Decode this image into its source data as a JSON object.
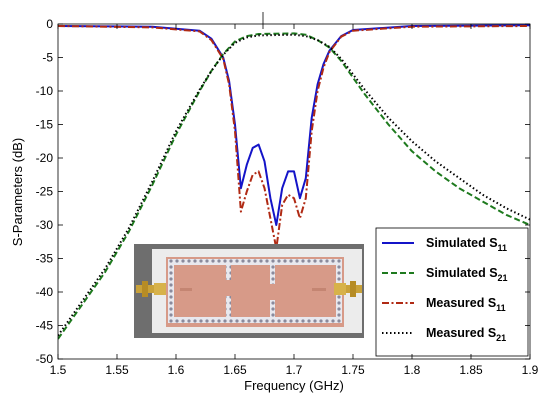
{
  "chart_data": {
    "type": "line",
    "title": "",
    "xlabel": "Frequency (GHz)",
    "ylabel": "S-Parameters (dB)",
    "xlim": [
      1.5,
      1.9
    ],
    "ylim": [
      -50,
      0
    ],
    "xticks": [
      "1.5",
      "1.55",
      "1.6",
      "1.65",
      "1.7",
      "1.75",
      "1.8",
      "1.85",
      "1.9"
    ],
    "yticks": [
      "0",
      "-5",
      "-10",
      "-15",
      "-20",
      "-25",
      "-30",
      "-35",
      "-40",
      "-45",
      "-50"
    ],
    "grid": false,
    "legend_position": "bottom-right",
    "inset_image": "photo of fabricated microstrip filter board with SMA connectors",
    "series": [
      {
        "name": "Simulated S11",
        "label_main": "Simulated S",
        "label_sub": "11",
        "color": "#1414c8",
        "style": "solid",
        "points": [
          [
            1.5,
            -0.3
          ],
          [
            1.58,
            -0.4
          ],
          [
            1.62,
            -1.0
          ],
          [
            1.63,
            -2.2
          ],
          [
            1.64,
            -5.0
          ],
          [
            1.645,
            -8.5
          ],
          [
            1.65,
            -15.0
          ],
          [
            1.655,
            -24.5
          ],
          [
            1.66,
            -21.0
          ],
          [
            1.665,
            -18.5
          ],
          [
            1.67,
            -18.0
          ],
          [
            1.675,
            -20.5
          ],
          [
            1.68,
            -26.0
          ],
          [
            1.685,
            -30.0
          ],
          [
            1.69,
            -24.5
          ],
          [
            1.695,
            -22.0
          ],
          [
            1.7,
            -22.0
          ],
          [
            1.705,
            -26.0
          ],
          [
            1.71,
            -23.0
          ],
          [
            1.715,
            -14.0
          ],
          [
            1.72,
            -9.0
          ],
          [
            1.725,
            -6.0
          ],
          [
            1.73,
            -4.0
          ],
          [
            1.74,
            -1.8
          ],
          [
            1.75,
            -0.9
          ],
          [
            1.8,
            -0.3
          ],
          [
            1.9,
            -0.2
          ]
        ]
      },
      {
        "name": "Simulated S21",
        "label_main": "Simulated S",
        "label_sub": "21",
        "color": "#1e7a1e",
        "style": "dashed",
        "points": [
          [
            1.5,
            -47.0
          ],
          [
            1.52,
            -42.0
          ],
          [
            1.54,
            -37.0
          ],
          [
            1.56,
            -31.0
          ],
          [
            1.58,
            -24.0
          ],
          [
            1.6,
            -16.5
          ],
          [
            1.62,
            -10.0
          ],
          [
            1.63,
            -7.0
          ],
          [
            1.64,
            -4.5
          ],
          [
            1.65,
            -2.6
          ],
          [
            1.66,
            -1.8
          ],
          [
            1.67,
            -1.5
          ],
          [
            1.7,
            -1.4
          ],
          [
            1.71,
            -1.6
          ],
          [
            1.72,
            -2.4
          ],
          [
            1.73,
            -3.5
          ],
          [
            1.74,
            -5.5
          ],
          [
            1.75,
            -8.0
          ],
          [
            1.76,
            -10.5
          ],
          [
            1.78,
            -15.0
          ],
          [
            1.8,
            -19.0
          ],
          [
            1.82,
            -22.0
          ],
          [
            1.84,
            -24.5
          ],
          [
            1.86,
            -26.5
          ],
          [
            1.88,
            -28.5
          ],
          [
            1.9,
            -30.0
          ]
        ]
      },
      {
        "name": "Measured S11",
        "label_main": "Measured S",
        "label_sub": "11",
        "color": "#b02a14",
        "style": "dashdot",
        "points": [
          [
            1.5,
            -0.3
          ],
          [
            1.58,
            -0.5
          ],
          [
            1.62,
            -1.1
          ],
          [
            1.63,
            -2.4
          ],
          [
            1.64,
            -5.2
          ],
          [
            1.645,
            -9.0
          ],
          [
            1.65,
            -16.0
          ],
          [
            1.655,
            -28.0
          ],
          [
            1.66,
            -25.0
          ],
          [
            1.665,
            -22.5
          ],
          [
            1.67,
            -22.0
          ],
          [
            1.675,
            -24.5
          ],
          [
            1.68,
            -29.0
          ],
          [
            1.685,
            -33.5
          ],
          [
            1.69,
            -27.0
          ],
          [
            1.695,
            -25.5
          ],
          [
            1.7,
            -26.0
          ],
          [
            1.705,
            -29.0
          ],
          [
            1.71,
            -26.0
          ],
          [
            1.715,
            -16.0
          ],
          [
            1.72,
            -10.0
          ],
          [
            1.725,
            -6.5
          ],
          [
            1.73,
            -4.2
          ],
          [
            1.74,
            -1.9
          ],
          [
            1.75,
            -1.0
          ],
          [
            1.8,
            -0.4
          ],
          [
            1.9,
            -0.3
          ]
        ]
      },
      {
        "name": "Measured S21",
        "label_main": "Measured S",
        "label_sub": "21",
        "color": "#000000",
        "style": "dotted",
        "points": [
          [
            1.5,
            -46.5
          ],
          [
            1.52,
            -41.5
          ],
          [
            1.54,
            -36.5
          ],
          [
            1.56,
            -30.5
          ],
          [
            1.58,
            -23.5
          ],
          [
            1.6,
            -16.0
          ],
          [
            1.62,
            -9.8
          ],
          [
            1.63,
            -7.0
          ],
          [
            1.64,
            -4.6
          ],
          [
            1.65,
            -2.8
          ],
          [
            1.66,
            -2.0
          ],
          [
            1.67,
            -1.7
          ],
          [
            1.7,
            -1.6
          ],
          [
            1.71,
            -1.8
          ],
          [
            1.72,
            -2.4
          ],
          [
            1.73,
            -3.4
          ],
          [
            1.74,
            -5.2
          ],
          [
            1.75,
            -7.5
          ],
          [
            1.76,
            -9.8
          ],
          [
            1.78,
            -14.0
          ],
          [
            1.8,
            -17.5
          ],
          [
            1.82,
            -20.5
          ],
          [
            1.84,
            -23.0
          ],
          [
            1.86,
            -25.5
          ],
          [
            1.88,
            -27.5
          ],
          [
            1.9,
            -29.2
          ]
        ]
      }
    ]
  }
}
